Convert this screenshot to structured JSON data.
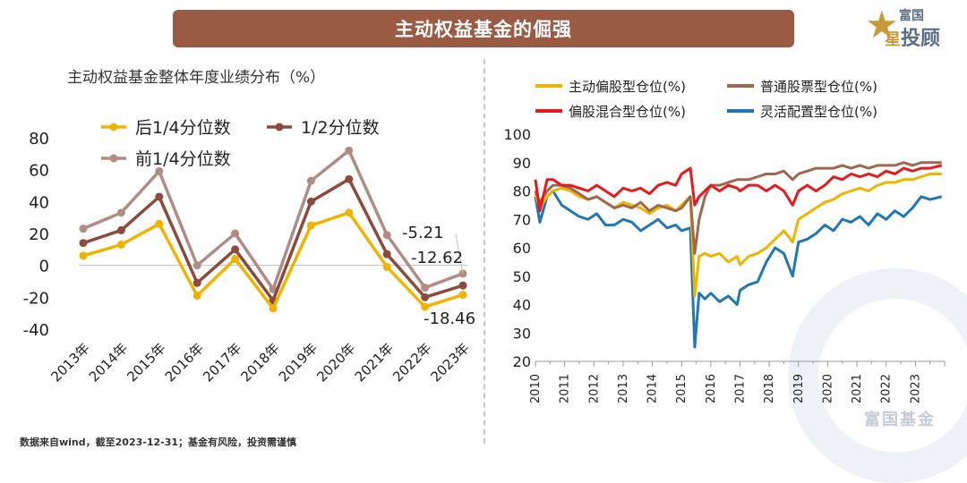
{
  "banner_title": "主动权益基金的倔强",
  "logo": {
    "line1": "富国",
    "line2": "投顾",
    "star_glyph": "星"
  },
  "watermark": "富国基金",
  "footnote": "数据来自wind，截至2023-12-31；基金有风险，投资需谨慎",
  "colors": {
    "banner": "#9b5a44",
    "gold": "#f0b400",
    "brown": "#8c4a3c",
    "mauve": "#b08c86",
    "red": "#e41a1c",
    "blue": "#1f77b4",
    "tan": "#a0674f"
  },
  "chart_data": [
    {
      "type": "line",
      "title": "主动权益基金整体年度业绩分布（%）",
      "categories": [
        "2013年",
        "2014年",
        "2015年",
        "2016年",
        "2017年",
        "2018年",
        "2019年",
        "2020年",
        "2021年",
        "2022年",
        "2023年"
      ],
      "ylim": [
        -40,
        80
      ],
      "yticks": [
        "80",
        "60",
        "40",
        "20",
        "0",
        "-20",
        "-40"
      ],
      "legend_position": "top-left",
      "series": [
        {
          "name": "后1/4分位数",
          "color": "#f0b400",
          "values": [
            6,
            13,
            26,
            -19,
            4,
            -27,
            25,
            33,
            -1,
            -26,
            -18.46
          ]
        },
        {
          "name": "1/2分位数",
          "color": "#8c4a3c",
          "values": [
            14,
            22,
            43,
            -11,
            10,
            -22,
            40,
            54,
            7,
            -20,
            -12.62
          ]
        },
        {
          "name": "前1/4分位数",
          "color": "#b08c86",
          "values": [
            23,
            33,
            59,
            0,
            20,
            -15,
            53,
            72,
            19,
            -14,
            -5.21
          ]
        }
      ],
      "annotations": [
        "-5.21",
        "-12.62",
        "-18.46"
      ]
    },
    {
      "type": "line",
      "title": "",
      "x_labels": [
        "2010",
        "2011",
        "2012",
        "2013",
        "2014",
        "2015",
        "2016",
        "2017",
        "2018",
        "2019",
        "2020",
        "2021",
        "2022",
        "2023"
      ],
      "xlim": [
        2010,
        2024
      ],
      "ylim": [
        20,
        100
      ],
      "yticks": [
        "100",
        "90",
        "80",
        "70",
        "60",
        "50",
        "40",
        "30",
        "20"
      ],
      "legend_position": "top",
      "series": [
        {
          "name": "主动偏股型仓位(%)",
          "color": "#f0b400",
          "x": [
            2010,
            2010.15,
            2010.4,
            2010.6,
            2010.9,
            2011.2,
            2011.5,
            2011.8,
            2012.1,
            2012.4,
            2012.7,
            2013,
            2013.3,
            2013.6,
            2013.9,
            2014.2,
            2014.5,
            2014.8,
            2015,
            2015.3,
            2015.45,
            2015.6,
            2015.8,
            2016,
            2016.3,
            2016.6,
            2016.9,
            2017,
            2017.3,
            2017.6,
            2017.9,
            2018.2,
            2018.5,
            2018.8,
            2019,
            2019.3,
            2019.6,
            2019.9,
            2020.2,
            2020.5,
            2020.8,
            2021.1,
            2021.4,
            2021.7,
            2022,
            2022.3,
            2022.6,
            2022.9,
            2023.2,
            2023.5,
            2023.9
          ],
          "values": [
            79,
            74,
            78,
            80,
            81,
            80,
            78,
            77,
            78,
            76,
            74,
            76,
            75,
            74,
            72,
            74,
            75,
            73,
            75,
            78,
            43,
            57,
            58,
            57,
            58,
            55,
            57,
            54,
            57,
            58,
            60,
            63,
            66,
            62,
            70,
            72,
            74,
            76,
            77,
            79,
            80,
            81,
            80,
            82,
            83,
            83,
            84,
            84,
            85,
            86,
            86
          ]
        },
        {
          "name": "普通股票型仓位(%)",
          "color": "#a0674f",
          "x": [
            2010,
            2010.15,
            2010.4,
            2010.6,
            2010.9,
            2011.2,
            2011.5,
            2011.8,
            2012.1,
            2012.4,
            2012.7,
            2013,
            2013.3,
            2013.6,
            2013.9,
            2014.2,
            2014.5,
            2014.8,
            2015,
            2015.3,
            2015.45,
            2015.6,
            2015.8,
            2016,
            2016.3,
            2016.6,
            2016.9,
            2017,
            2017.3,
            2017.6,
            2017.9,
            2018.2,
            2018.5,
            2018.8,
            2019,
            2019.3,
            2019.6,
            2019.9,
            2020.2,
            2020.5,
            2020.8,
            2021.1,
            2021.4,
            2021.7,
            2022,
            2022.3,
            2022.6,
            2022.9,
            2023.2,
            2023.5,
            2023.9
          ],
          "values": [
            80,
            76,
            80,
            82,
            82,
            81,
            79,
            77,
            78,
            76,
            74,
            75,
            74,
            76,
            73,
            75,
            74,
            73,
            74,
            78,
            58,
            70,
            78,
            82,
            82,
            83,
            84,
            84,
            84,
            85,
            86,
            86,
            87,
            84,
            86,
            87,
            88,
            88,
            88,
            89,
            88,
            89,
            88,
            89,
            89,
            89,
            90,
            89,
            90,
            90,
            90
          ]
        },
        {
          "name": "偏股混合型仓位(%)",
          "color": "#e41a1c",
          "x": [
            2010,
            2010.15,
            2010.4,
            2010.6,
            2010.9,
            2011.2,
            2011.5,
            2011.8,
            2012.1,
            2012.4,
            2012.7,
            2013,
            2013.3,
            2013.6,
            2013.9,
            2014.2,
            2014.5,
            2014.8,
            2015,
            2015.3,
            2015.45,
            2015.6,
            2015.8,
            2016,
            2016.3,
            2016.6,
            2016.9,
            2017,
            2017.3,
            2017.6,
            2017.9,
            2018.2,
            2018.5,
            2018.8,
            2019,
            2019.3,
            2019.6,
            2019.9,
            2020.2,
            2020.5,
            2020.8,
            2021.1,
            2021.4,
            2021.7,
            2022,
            2022.3,
            2022.6,
            2022.9,
            2023.2,
            2023.5,
            2023.9
          ],
          "values": [
            84,
            73,
            84,
            84,
            82,
            82,
            81,
            80,
            82,
            80,
            78,
            81,
            80,
            81,
            79,
            82,
            83,
            82,
            86,
            88,
            75,
            78,
            80,
            82,
            80,
            82,
            81,
            80,
            82,
            82,
            80,
            82,
            80,
            75,
            80,
            82,
            80,
            82,
            85,
            84,
            86,
            85,
            86,
            85,
            87,
            86,
            88,
            87,
            88,
            88,
            89
          ]
        },
        {
          "name": "灵活配置型仓位(%)",
          "color": "#1f77b4",
          "x": [
            2010,
            2010.15,
            2010.4,
            2010.6,
            2010.9,
            2011.2,
            2011.5,
            2011.8,
            2012.1,
            2012.4,
            2012.7,
            2013,
            2013.3,
            2013.6,
            2013.9,
            2014.2,
            2014.5,
            2014.8,
            2015,
            2015.3,
            2015.45,
            2015.6,
            2015.8,
            2016,
            2016.3,
            2016.6,
            2016.9,
            2017,
            2017.3,
            2017.6,
            2017.9,
            2018.2,
            2018.5,
            2018.8,
            2019,
            2019.3,
            2019.6,
            2019.9,
            2020.2,
            2020.5,
            2020.8,
            2021.1,
            2021.4,
            2021.7,
            2022,
            2022.3,
            2022.6,
            2022.9,
            2023.2,
            2023.5,
            2023.9
          ],
          "values": [
            78,
            69,
            78,
            80,
            75,
            73,
            71,
            70,
            72,
            68,
            68,
            70,
            69,
            66,
            68,
            70,
            67,
            68,
            66,
            67,
            25,
            44,
            42,
            44,
            41,
            43,
            40,
            45,
            47,
            48,
            55,
            60,
            58,
            50,
            62,
            63,
            65,
            68,
            66,
            70,
            69,
            71,
            68,
            72,
            70,
            73,
            71,
            74,
            78,
            77,
            78
          ]
        }
      ]
    }
  ]
}
